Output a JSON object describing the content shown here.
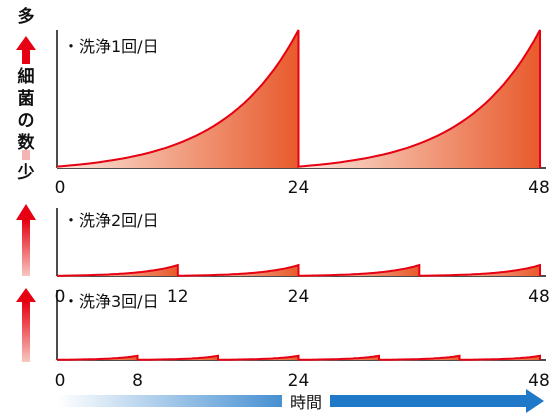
{
  "y_axis": {
    "top_label": "多",
    "middle_label": "細菌の数",
    "bottom_label": "少"
  },
  "x_axis_label": "時間",
  "chart_data": [
    {
      "type": "area",
      "label": "・洗浄1回/日",
      "x_ticks": [
        "0",
        "24",
        "48"
      ],
      "xlim": [
        0,
        48
      ],
      "wash_times": [
        24
      ],
      "ylim": [
        0,
        1
      ],
      "growth_peak": 1.0
    },
    {
      "type": "area",
      "label": "・洗浄2回/日",
      "x_ticks": [
        "0",
        "12",
        "24",
        "48"
      ],
      "xlim": [
        0,
        48
      ],
      "wash_times": [
        12,
        24,
        36
      ],
      "ylim": [
        0,
        1
      ],
      "growth_peak": 0.16
    },
    {
      "type": "area",
      "label": "・洗浄3回/日",
      "x_ticks": [
        "0",
        "8",
        "24",
        "48"
      ],
      "xlim": [
        0,
        48
      ],
      "wash_times": [
        8,
        16,
        24,
        32,
        40
      ],
      "ylim": [
        0,
        1
      ],
      "growth_peak": 0.06
    }
  ]
}
